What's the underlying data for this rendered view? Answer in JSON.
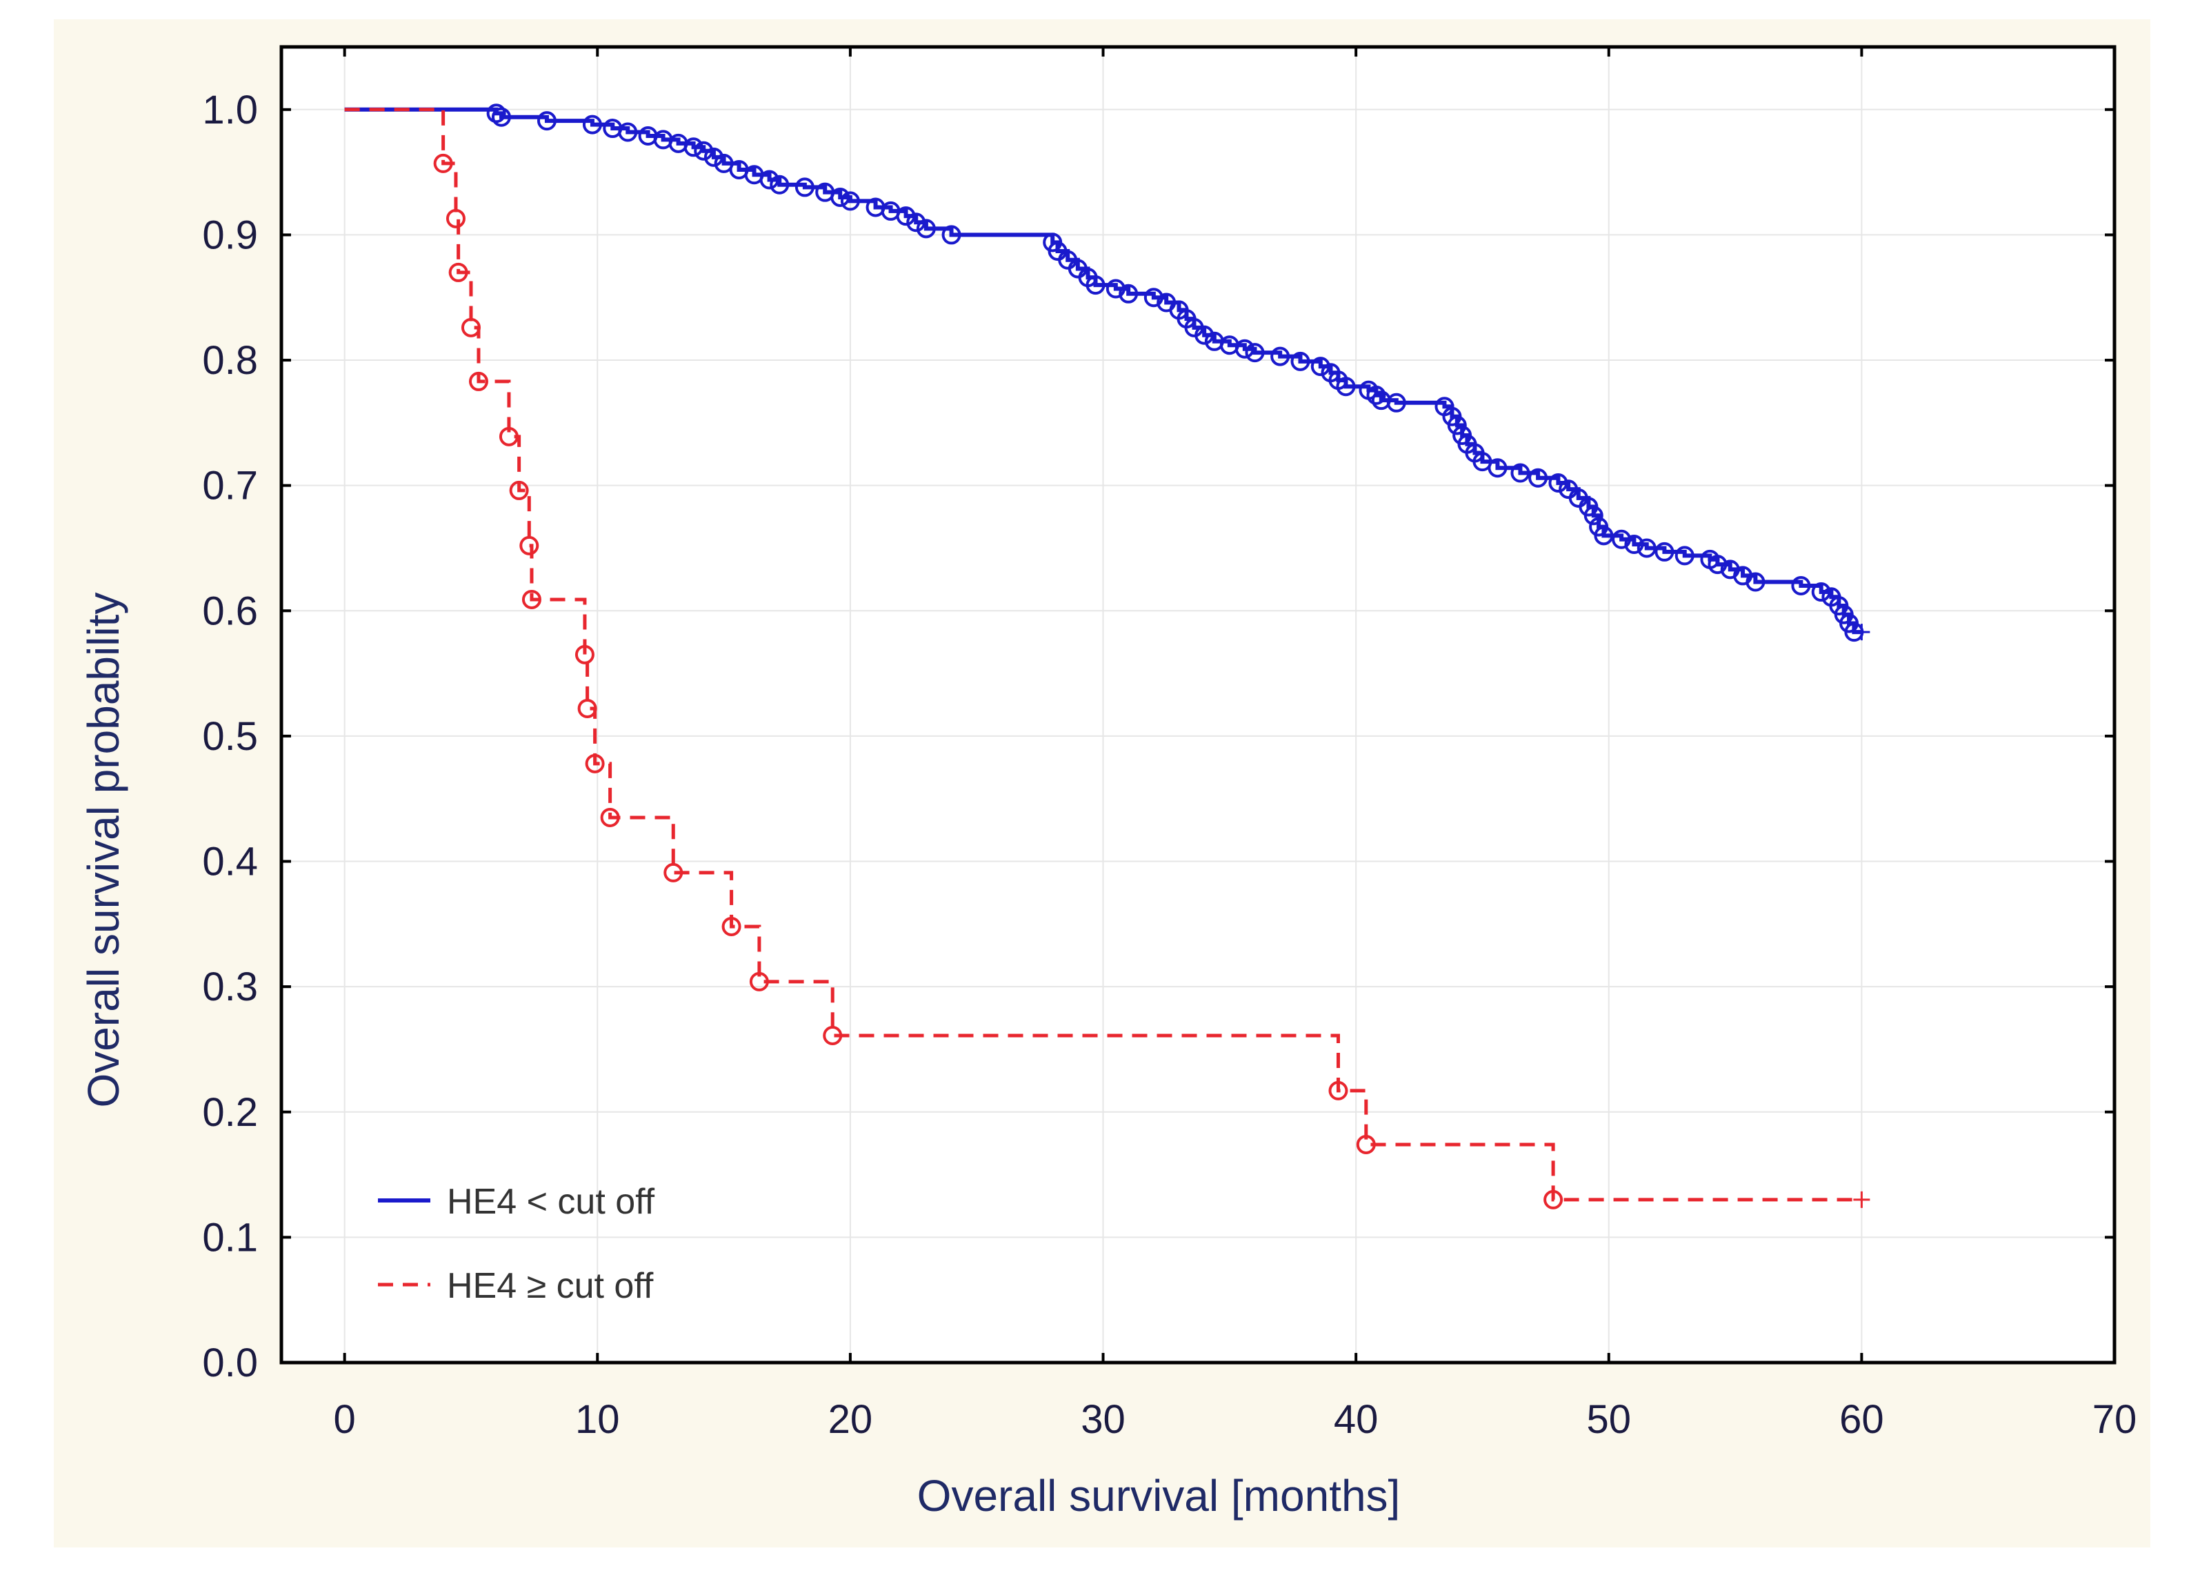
{
  "chart_data": {
    "type": "line",
    "subtype": "kaplan-meier step",
    "xlabel": "Overall survival [months]",
    "ylabel": "Overall survival probability",
    "xlim": [
      -2.5,
      70
    ],
    "ylim": [
      0,
      1.05
    ],
    "x_ticks": [
      0,
      10,
      20,
      30,
      40,
      50,
      60,
      70
    ],
    "y_ticks": [
      0.0,
      0.1,
      0.2,
      0.3,
      0.4,
      0.5,
      0.6,
      0.7,
      0.8,
      0.9,
      1.0
    ],
    "x_tick_labels": [
      "0",
      "10",
      "20",
      "30",
      "40",
      "50",
      "60",
      "70"
    ],
    "y_tick_labels": [
      "0.0",
      "0.1",
      "0.2",
      "0.3",
      "0.4",
      "0.5",
      "0.6",
      "0.7",
      "0.8",
      "0.9",
      "1.0"
    ],
    "grid": true,
    "legend_position": "bottom-left",
    "series": [
      {
        "name": "HE4 < cut off",
        "color": "#1a1acc",
        "line_style": "solid",
        "points": [
          [
            0,
            1.0
          ],
          [
            6.0,
            0.997
          ],
          [
            6.2,
            0.994
          ],
          [
            8.0,
            0.991
          ],
          [
            9.8,
            0.988
          ],
          [
            10.6,
            0.985
          ],
          [
            11.2,
            0.982
          ],
          [
            12.0,
            0.979
          ],
          [
            12.6,
            0.976
          ],
          [
            13.2,
            0.973
          ],
          [
            13.8,
            0.97
          ],
          [
            14.2,
            0.967
          ],
          [
            14.6,
            0.962
          ],
          [
            15.0,
            0.957
          ],
          [
            15.6,
            0.952
          ],
          [
            16.2,
            0.948
          ],
          [
            16.8,
            0.944
          ],
          [
            17.2,
            0.94
          ],
          [
            18.2,
            0.938
          ],
          [
            19.0,
            0.934
          ],
          [
            19.6,
            0.93
          ],
          [
            20.0,
            0.927
          ],
          [
            21.0,
            0.922
          ],
          [
            21.6,
            0.919
          ],
          [
            22.2,
            0.915
          ],
          [
            22.6,
            0.91
          ],
          [
            23.0,
            0.905
          ],
          [
            24.0,
            0.9
          ],
          [
            28.0,
            0.894
          ],
          [
            28.2,
            0.887
          ],
          [
            28.6,
            0.88
          ],
          [
            29.0,
            0.873
          ],
          [
            29.4,
            0.866
          ],
          [
            29.7,
            0.86
          ],
          [
            30.5,
            0.857
          ],
          [
            31.0,
            0.853
          ],
          [
            32.0,
            0.85
          ],
          [
            32.5,
            0.846
          ],
          [
            33.0,
            0.84
          ],
          [
            33.3,
            0.833
          ],
          [
            33.6,
            0.826
          ],
          [
            34.0,
            0.82
          ],
          [
            34.4,
            0.815
          ],
          [
            35.0,
            0.812
          ],
          [
            35.6,
            0.809
          ],
          [
            36.0,
            0.806
          ],
          [
            37.0,
            0.803
          ],
          [
            37.8,
            0.799
          ],
          [
            38.6,
            0.795
          ],
          [
            39.0,
            0.79
          ],
          [
            39.3,
            0.784
          ],
          [
            39.6,
            0.779
          ],
          [
            40.5,
            0.776
          ],
          [
            40.8,
            0.772
          ],
          [
            41.0,
            0.768
          ],
          [
            41.6,
            0.766
          ],
          [
            43.5,
            0.763
          ],
          [
            43.8,
            0.755
          ],
          [
            44.0,
            0.748
          ],
          [
            44.2,
            0.74
          ],
          [
            44.4,
            0.733
          ],
          [
            44.7,
            0.726
          ],
          [
            45.0,
            0.719
          ],
          [
            45.6,
            0.714
          ],
          [
            46.5,
            0.71
          ],
          [
            47.2,
            0.706
          ],
          [
            48.0,
            0.702
          ],
          [
            48.4,
            0.697
          ],
          [
            48.8,
            0.69
          ],
          [
            49.2,
            0.683
          ],
          [
            49.4,
            0.676
          ],
          [
            49.6,
            0.667
          ],
          [
            49.8,
            0.66
          ],
          [
            50.5,
            0.657
          ],
          [
            51.0,
            0.653
          ],
          [
            51.5,
            0.65
          ],
          [
            52.2,
            0.647
          ],
          [
            53.0,
            0.644
          ],
          [
            54.0,
            0.641
          ],
          [
            54.3,
            0.637
          ],
          [
            54.8,
            0.633
          ],
          [
            55.3,
            0.628
          ],
          [
            55.8,
            0.623
          ],
          [
            57.6,
            0.62
          ],
          [
            58.4,
            0.615
          ],
          [
            58.8,
            0.611
          ],
          [
            59.1,
            0.604
          ],
          [
            59.3,
            0.597
          ],
          [
            59.5,
            0.59
          ],
          [
            59.7,
            0.583
          ]
        ],
        "censor_end": [
          60.0,
          0.583
        ]
      },
      {
        "name": "HE4 ≥ cut off",
        "color": "#e8262e",
        "line_style": "dashed",
        "points": [
          [
            0,
            1.0
          ],
          [
            3.9,
            0.957
          ],
          [
            4.4,
            0.913
          ],
          [
            4.5,
            0.87
          ],
          [
            5.0,
            0.826
          ],
          [
            5.3,
            0.783
          ],
          [
            6.5,
            0.739
          ],
          [
            6.9,
            0.696
          ],
          [
            7.3,
            0.652
          ],
          [
            7.4,
            0.609
          ],
          [
            9.5,
            0.565
          ],
          [
            9.6,
            0.522
          ],
          [
            9.9,
            0.478
          ],
          [
            10.5,
            0.435
          ],
          [
            13.0,
            0.391
          ],
          [
            15.3,
            0.348
          ],
          [
            16.4,
            0.304
          ],
          [
            19.3,
            0.261
          ],
          [
            39.3,
            0.217
          ],
          [
            40.4,
            0.174
          ],
          [
            47.8,
            0.13
          ]
        ],
        "censor_end": [
          60.0,
          0.13
        ]
      }
    ]
  }
}
